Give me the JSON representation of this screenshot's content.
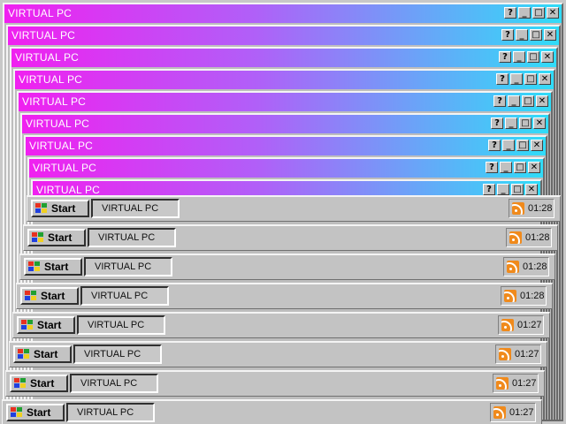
{
  "window": {
    "title": "VIRTUAL PC",
    "buttons": {
      "help": "?",
      "minimize": "_",
      "maximize": "□",
      "close": "✕"
    },
    "gradient": {
      "left": "#f020f0",
      "right": "#30dcf8"
    }
  },
  "taskbars": [
    {
      "start_label": "Start",
      "task_label": "VIRTUAL PC",
      "clock": "01:28"
    },
    {
      "start_label": "Start",
      "task_label": "VIRTUAL PC",
      "clock": "01:28"
    },
    {
      "start_label": "Start",
      "task_label": "VIRTUAL PC",
      "clock": "01:28"
    },
    {
      "start_label": "Start",
      "task_label": "VIRTUAL PC",
      "clock": "01:28"
    },
    {
      "start_label": "Start",
      "task_label": "VIRTUAL PC",
      "clock": "01:27"
    },
    {
      "start_label": "Start",
      "task_label": "VIRTUAL PC",
      "clock": "01:27"
    },
    {
      "start_label": "Start",
      "task_label": "VIRTUAL PC",
      "clock": "01:27"
    },
    {
      "start_label": "Start",
      "task_label": "VIRTUAL PC",
      "clock": "01:27"
    }
  ],
  "window_count": 9,
  "icons": {
    "start": "windows-flag-icon",
    "tray": "rss-feed-icon",
    "pointer": "mouse-cursor-icon"
  }
}
